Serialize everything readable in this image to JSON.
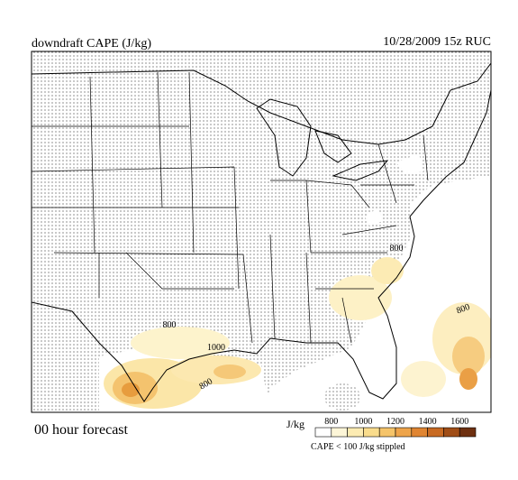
{
  "header": {
    "title": "downdraft CAPE (J/kg)",
    "valid": "10/28/2009  15z  RUC"
  },
  "footer": {
    "forecast": "00 hour forecast"
  },
  "legend": {
    "unit": "J/kg",
    "ticks": [
      800,
      1000,
      1200,
      1400,
      1600
    ],
    "note": "CAPE < 100 J/kg stippled"
  },
  "contour_labels": [
    800,
    1000,
    800,
    800,
    800
  ]
}
